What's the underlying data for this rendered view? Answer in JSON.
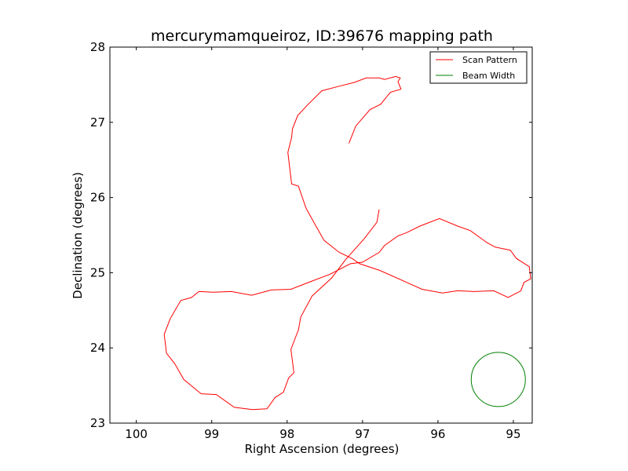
{
  "chart_data": {
    "type": "line",
    "title": "mercurymamqueiroz, ID:39676 mapping path",
    "xlabel": "Right Ascension (degrees)",
    "ylabel": "Declination (degrees)",
    "xlim": [
      100.35,
      94.75
    ],
    "ylim": [
      23,
      28
    ],
    "x_inverted": true,
    "xticks": [
      100,
      99,
      98,
      97,
      96,
      95
    ],
    "yticks": [
      23,
      24,
      25,
      26,
      27,
      28
    ],
    "xtick_labels": [
      "100",
      "99",
      "98",
      "97",
      "96",
      "95"
    ],
    "ytick_labels": [
      "23",
      "24",
      "25",
      "26",
      "27",
      "28"
    ],
    "grid": false,
    "legend_position": "top-right",
    "series": [
      {
        "name": "Scan Pattern",
        "color": "#ff0000",
        "x": [
          96.78,
          96.81,
          96.98,
          97.22,
          97.41,
          97.67,
          97.82,
          97.85,
          97.87,
          97.95,
          97.91,
          97.98,
          98.05,
          98.16,
          98.26,
          98.27,
          98.46,
          98.7,
          98.94,
          99.14,
          99.37,
          99.49,
          99.6,
          99.63,
          99.55,
          99.41,
          99.27,
          99.17,
          98.98,
          98.74,
          98.47,
          98.21,
          97.95,
          97.72,
          97.43,
          97.16,
          97.0,
          96.78,
          96.71,
          96.53,
          96.42,
          96.24,
          95.98,
          95.74,
          95.57,
          95.35,
          95.24,
          95.04,
          94.96,
          94.79,
          94.77,
          94.86,
          94.9,
          95.07,
          95.26,
          95.52,
          95.74,
          95.94,
          96.21,
          96.41,
          96.77,
          97.04,
          97.14,
          97.31,
          97.51,
          97.64,
          97.75,
          97.85,
          97.94,
          97.99,
          97.94,
          97.93,
          97.86,
          97.73,
          97.54,
          97.31,
          97.11,
          96.95,
          96.78,
          96.71,
          96.56,
          96.5,
          96.53,
          96.49,
          96.63,
          96.76,
          96.9,
          97.09,
          97.18
        ],
        "y": [
          25.84,
          25.67,
          25.45,
          25.18,
          24.93,
          24.69,
          24.41,
          24.24,
          24.19,
          23.98,
          23.67,
          23.6,
          23.41,
          23.34,
          23.2,
          23.19,
          23.18,
          23.21,
          23.38,
          23.39,
          23.58,
          23.79,
          23.93,
          24.18,
          24.39,
          24.63,
          24.67,
          24.75,
          24.74,
          24.75,
          24.7,
          24.77,
          24.78,
          24.87,
          24.98,
          25.12,
          25.14,
          25.27,
          25.36,
          25.49,
          25.53,
          25.62,
          25.72,
          25.62,
          25.56,
          25.4,
          25.34,
          25.3,
          25.19,
          25.08,
          24.92,
          24.87,
          24.76,
          24.67,
          24.76,
          24.75,
          24.76,
          24.73,
          24.78,
          24.87,
          25.03,
          25.12,
          25.19,
          25.27,
          25.43,
          25.66,
          25.86,
          26.15,
          26.18,
          26.6,
          26.8,
          26.91,
          27.09,
          27.23,
          27.42,
          27.48,
          27.53,
          27.59,
          27.59,
          27.57,
          27.61,
          27.59,
          27.54,
          27.44,
          27.4,
          27.24,
          27.17,
          26.95,
          26.72
        ]
      },
      {
        "name": "Beam Width",
        "color": "#008000",
        "shape": "circle",
        "center": [
          95.2,
          23.58
        ],
        "radius_dec": 0.36
      }
    ]
  }
}
